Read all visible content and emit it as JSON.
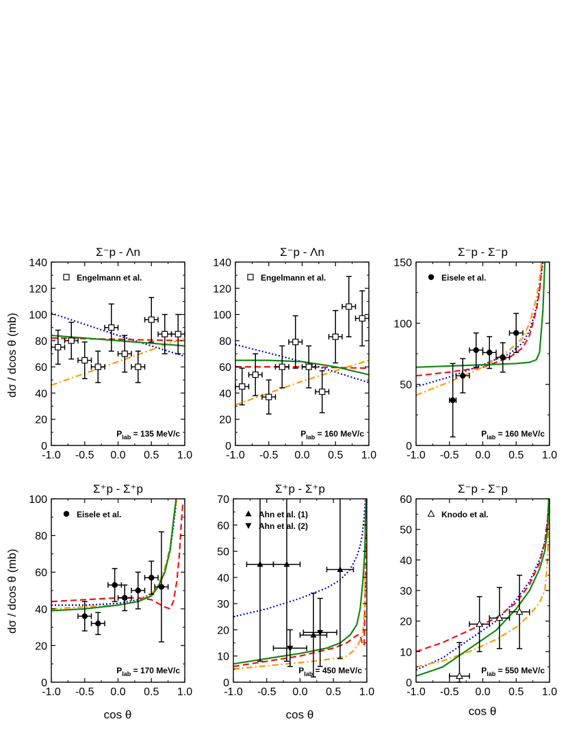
{
  "figure": {
    "ylabel": "dσ / dcos θ (mb)",
    "xlabel": "cos θ"
  },
  "chart_data": [
    {
      "type": "line",
      "title": "Σ⁻p - Λn",
      "momentum_label": "P",
      "momentum_sub": "lab",
      "momentum_value": "= 135 MeV/c",
      "xlim": [
        -1.0,
        1.0
      ],
      "ylim": [
        0,
        140
      ],
      "xticks": [
        "-1.0",
        "-0.5",
        "0.0",
        "0.5",
        "1.0"
      ],
      "yticks": [
        "0",
        "20",
        "40",
        "60",
        "80",
        "100",
        "120",
        "140"
      ],
      "legend": [
        {
          "label": "Engelmann et al.",
          "marker": "open-square"
        }
      ],
      "data_points": [
        {
          "marker": "open-square",
          "x": -0.9,
          "y": 75,
          "xerr": 0.1,
          "yerr": 13
        },
        {
          "marker": "open-square",
          "x": -0.7,
          "y": 80,
          "xerr": 0.1,
          "yerr": 14
        },
        {
          "marker": "open-square",
          "x": -0.5,
          "y": 65,
          "xerr": 0.1,
          "yerr": 14
        },
        {
          "marker": "open-square",
          "x": -0.3,
          "y": 60,
          "xerr": 0.1,
          "yerr": 12
        },
        {
          "marker": "open-square",
          "x": -0.1,
          "y": 90,
          "xerr": 0.1,
          "yerr": 18
        },
        {
          "marker": "open-square",
          "x": 0.1,
          "y": 70,
          "xerr": 0.1,
          "yerr": 14
        },
        {
          "marker": "open-square",
          "x": 0.3,
          "y": 60,
          "xerr": 0.1,
          "yerr": 12
        },
        {
          "marker": "open-square",
          "x": 0.5,
          "y": 96,
          "xerr": 0.1,
          "yerr": 17
        },
        {
          "marker": "open-square",
          "x": 0.7,
          "y": 85,
          "xerr": 0.1,
          "yerr": 15
        },
        {
          "marker": "open-square",
          "x": 0.9,
          "y": 85,
          "xerr": 0.1,
          "yerr": 15
        }
      ],
      "curves": [
        {
          "style": "dotted",
          "color": "#0000cc",
          "x": [
            -1,
            0,
            1
          ],
          "y": [
            101,
            84,
            68
          ]
        },
        {
          "style": "dashed",
          "color": "#ee1111",
          "x": [
            -1,
            0,
            1
          ],
          "y": [
            82,
            81,
            80
          ]
        },
        {
          "style": "dashdot",
          "color": "#ff9900",
          "x": [
            -1,
            0,
            1
          ],
          "y": [
            46,
            64,
            82
          ]
        },
        {
          "style": "solid",
          "color": "#118811",
          "x": [
            -1,
            0,
            1
          ],
          "y": [
            84,
            80,
            76
          ]
        }
      ]
    },
    {
      "type": "line",
      "title": "Σ⁻p - Λn",
      "momentum_label": "P",
      "momentum_sub": "lab",
      "momentum_value": "= 160 MeV/c",
      "xlim": [
        -1.0,
        1.0
      ],
      "ylim": [
        0,
        140
      ],
      "xticks": [
        "-1.0",
        "-0.5",
        "0.0",
        "0.5",
        "1.0"
      ],
      "yticks": [
        "0",
        "20",
        "40",
        "60",
        "80",
        "100",
        "120",
        "140"
      ],
      "legend": [
        {
          "label": "Engelmann et al.",
          "marker": "open-square"
        }
      ],
      "data_points": [
        {
          "marker": "open-square",
          "x": -0.9,
          "y": 45,
          "xerr": 0.1,
          "yerr": 14
        },
        {
          "marker": "open-square",
          "x": -0.7,
          "y": 54,
          "xerr": 0.1,
          "yerr": 16
        },
        {
          "marker": "open-square",
          "x": -0.5,
          "y": 37,
          "xerr": 0.1,
          "yerr": 13
        },
        {
          "marker": "open-square",
          "x": -0.3,
          "y": 60,
          "xerr": 0.1,
          "yerr": 16
        },
        {
          "marker": "open-square",
          "x": -0.1,
          "y": 79,
          "xerr": 0.1,
          "yerr": 20
        },
        {
          "marker": "open-square",
          "x": 0.1,
          "y": 60,
          "xerr": 0.1,
          "yerr": 16
        },
        {
          "marker": "open-square",
          "x": 0.3,
          "y": 41,
          "xerr": 0.1,
          "yerr": 16
        },
        {
          "marker": "open-square",
          "x": 0.5,
          "y": 83,
          "xerr": 0.1,
          "yerr": 20
        },
        {
          "marker": "open-square",
          "x": 0.7,
          "y": 106,
          "xerr": 0.1,
          "yerr": 23
        },
        {
          "marker": "open-square",
          "x": 0.9,
          "y": 97,
          "xerr": 0.1,
          "yerr": 21
        }
      ],
      "curves": [
        {
          "style": "dotted",
          "color": "#0000cc",
          "x": [
            -1,
            0,
            1
          ],
          "y": [
            77,
            64,
            48
          ]
        },
        {
          "style": "dashed",
          "color": "#ee1111",
          "x": [
            -1,
            0,
            1
          ],
          "y": [
            60,
            60,
            59
          ]
        },
        {
          "style": "dashdot",
          "color": "#ff9900",
          "x": [
            -1,
            0,
            1
          ],
          "y": [
            31,
            49,
            65
          ]
        },
        {
          "style": "solid",
          "color": "#118811",
          "x": [
            -1,
            -0.5,
            0,
            0.5,
            1
          ],
          "y": [
            65,
            65,
            64,
            60,
            54
          ]
        }
      ]
    },
    {
      "type": "line",
      "title": "Σ⁻p - Σ⁻p",
      "momentum_label": "P",
      "momentum_sub": "lab",
      "momentum_value": "= 160 MeV/c",
      "xlim": [
        -1.0,
        1.0
      ],
      "ylim": [
        0,
        150
      ],
      "xticks": [
        "-1.0",
        "-0.5",
        "0.0",
        "0.5",
        "1.0"
      ],
      "yticks": [
        "0",
        "50",
        "100",
        "150"
      ],
      "legend": [
        {
          "label": "Eisele et al.",
          "marker": "filled-circle"
        }
      ],
      "data_points": [
        {
          "marker": "filled-circle",
          "x": -0.45,
          "y": 37,
          "xerr": 0.05,
          "yerr": 30
        },
        {
          "marker": "filled-circle",
          "x": -0.3,
          "y": 57,
          "xerr": 0.1,
          "yerr": 14
        },
        {
          "marker": "filled-circle",
          "x": -0.1,
          "y": 78,
          "xerr": 0.1,
          "yerr": 14
        },
        {
          "marker": "filled-circle",
          "x": 0.1,
          "y": 76,
          "xerr": 0.1,
          "yerr": 13
        },
        {
          "marker": "filled-circle",
          "x": 0.3,
          "y": 72,
          "xerr": 0.1,
          "yerr": 12
        },
        {
          "marker": "filled-circle",
          "x": 0.5,
          "y": 92,
          "xerr": 0.1,
          "yerr": 16
        }
      ],
      "curves": [
        {
          "style": "dotted",
          "color": "#0000cc",
          "x": [
            -1,
            -0.5,
            0,
            0.4,
            0.6,
            0.7,
            0.8,
            0.85,
            0.9
          ],
          "y": [
            48,
            56,
            66,
            75,
            84,
            94,
            112,
            128,
            150
          ]
        },
        {
          "style": "dashed",
          "color": "#ee1111",
          "x": [
            -1,
            -0.5,
            0,
            0.4,
            0.6,
            0.7,
            0.8,
            0.85,
            0.89
          ],
          "y": [
            57,
            60,
            64,
            72,
            80,
            90,
            110,
            126,
            150
          ]
        },
        {
          "style": "dashdot",
          "color": "#ff9900",
          "x": [
            -1,
            -0.5,
            0,
            0.4,
            0.6,
            0.7,
            0.8,
            0.85,
            0.88
          ],
          "y": [
            41,
            52,
            64,
            78,
            88,
            100,
            120,
            136,
            150
          ]
        },
        {
          "style": "solid",
          "color": "#118811",
          "x": [
            -1,
            -0.5,
            0,
            0.5,
            0.7,
            0.8,
            0.85,
            0.9,
            0.93
          ],
          "y": [
            64,
            65,
            66,
            67,
            68,
            70,
            76,
            110,
            150
          ]
        }
      ]
    },
    {
      "type": "line",
      "title": "Σ⁺p - Σ⁺p",
      "momentum_label": "P",
      "momentum_sub": "lab",
      "momentum_value": "= 170 MeV/c",
      "xlim": [
        -1.0,
        1.0
      ],
      "ylim": [
        0,
        100
      ],
      "xticks": [
        "-1.0",
        "-0.5",
        "0.0",
        "0.5",
        "1.0"
      ],
      "yticks": [
        "0",
        "20",
        "40",
        "60",
        "80",
        "100"
      ],
      "legend": [
        {
          "label": "Eisele et al.",
          "marker": "filled-circle"
        }
      ],
      "data_points": [
        {
          "marker": "filled-circle",
          "x": -0.5,
          "y": 36,
          "xerr": 0.1,
          "yerr": 8
        },
        {
          "marker": "filled-circle",
          "x": -0.3,
          "y": 32,
          "xerr": 0.1,
          "yerr": 6
        },
        {
          "marker": "filled-circle",
          "x": -0.05,
          "y": 53,
          "xerr": 0.1,
          "yerr": 9
        },
        {
          "marker": "filled-circle",
          "x": 0.1,
          "y": 46,
          "xerr": 0.1,
          "yerr": 7
        },
        {
          "marker": "filled-circle",
          "x": 0.3,
          "y": 50,
          "xerr": 0.1,
          "yerr": 10
        },
        {
          "marker": "filled-circle",
          "x": 0.5,
          "y": 57,
          "xerr": 0.1,
          "yerr": 9
        },
        {
          "marker": "filled-circle",
          "x": 0.65,
          "y": 52,
          "xerr": 0.1,
          "yerr": 30
        }
      ],
      "curves": [
        {
          "style": "dotted",
          "color": "#0000cc",
          "x": [
            -1,
            -0.5,
            0,
            0.3,
            0.5,
            0.6,
            0.7,
            0.78,
            0.84,
            0.88
          ],
          "y": [
            42,
            42,
            43,
            45,
            48,
            52,
            60,
            72,
            88,
            100
          ]
        },
        {
          "style": "dashed",
          "color": "#ee1111",
          "x": [
            -1,
            -0.5,
            0,
            0.3,
            0.5,
            0.6,
            0.7,
            0.78,
            0.83,
            0.88,
            0.92,
            0.95,
            0.97
          ],
          "y": [
            44,
            45,
            46,
            46,
            45,
            43,
            41,
            40,
            44,
            55,
            70,
            88,
            97
          ]
        },
        {
          "style": "dashdot",
          "color": "#ff9900",
          "x": [
            -1,
            -0.5,
            0,
            0.3,
            0.5,
            0.6,
            0.7,
            0.78,
            0.84,
            0.88
          ],
          "y": [
            40,
            41,
            42,
            44,
            48,
            53,
            62,
            74,
            90,
            100
          ]
        },
        {
          "style": "solid",
          "color": "#118811",
          "x": [
            -1,
            -0.5,
            0,
            0.3,
            0.5,
            0.6,
            0.7,
            0.78,
            0.83,
            0.87
          ],
          "y": [
            39,
            40,
            42,
            44,
            47,
            52,
            60,
            72,
            88,
            100
          ]
        }
      ]
    },
    {
      "type": "line",
      "title": "Σ⁺p - Σ⁺p",
      "momentum_label": "P",
      "momentum_sub": "lab",
      "momentum_value": "= 450 MeV/c",
      "xlim": [
        -1.0,
        1.0
      ],
      "ylim": [
        0,
        70
      ],
      "xticks": [
        "-1.0",
        "-0.5",
        "0.0",
        "0.5",
        "1.0"
      ],
      "yticks": [
        "0",
        "10",
        "20",
        "30",
        "40",
        "50",
        "60",
        "70"
      ],
      "legend": [
        {
          "label": "Ahn et al. (1)",
          "marker": "filled-triangle-up"
        },
        {
          "label": "Ahn et al. (2)",
          "marker": "filled-triangle-down"
        }
      ],
      "data_points": [
        {
          "marker": "filled-triangle-up",
          "x": -0.6,
          "y": 45,
          "xerr": 0.2,
          "yerr": 37
        },
        {
          "marker": "filled-triangle-up",
          "x": -0.2,
          "y": 45,
          "xerr": 0.2,
          "yerr": 37
        },
        {
          "marker": "filled-triangle-up",
          "x": 0.2,
          "y": 18,
          "xerr": 0.2,
          "yerr": 16
        },
        {
          "marker": "filled-triangle-up",
          "x": 0.6,
          "y": 43,
          "xerr": 0.2,
          "yerr": 34
        },
        {
          "marker": "filled-triangle-down",
          "x": -0.15,
          "y": 13,
          "xerr": 0.25,
          "yerr": 7
        },
        {
          "marker": "filled-triangle-down",
          "x": 0.3,
          "y": 19,
          "xerr": 0.25,
          "yerr": 13
        }
      ],
      "curves": [
        {
          "style": "dotted",
          "color": "#0000cc",
          "x": [
            -1,
            -0.5,
            0,
            0.4,
            0.6,
            0.75,
            0.85,
            0.9,
            0.93,
            0.96,
            0.98
          ],
          "y": [
            25,
            28,
            32,
            36,
            39,
            43,
            48,
            52,
            56,
            63,
            70
          ]
        },
        {
          "style": "dashed",
          "color": "#ee1111",
          "x": [
            -1,
            -0.5,
            0,
            0.5,
            0.7,
            0.8,
            0.86,
            0.9,
            0.93,
            0.96,
            0.98,
            0.99
          ],
          "y": [
            6,
            8,
            10,
            13,
            15,
            17,
            18,
            18,
            15,
            14,
            40,
            70
          ]
        },
        {
          "style": "dashdot",
          "color": "#ff9900",
          "x": [
            -1,
            -0.6,
            -0.2,
            0.2,
            0.5,
            0.7,
            0.8,
            0.86,
            0.9,
            0.94,
            0.97,
            0.99
          ],
          "y": [
            5,
            6,
            7,
            8,
            9,
            10,
            12,
            14,
            16,
            18,
            30,
            70
          ]
        },
        {
          "style": "solid",
          "color": "#118811",
          "x": [
            -1,
            -0.5,
            0,
            0.4,
            0.6,
            0.75,
            0.85,
            0.9,
            0.94,
            0.97,
            0.98,
            0.99
          ],
          "y": [
            7,
            9,
            11,
            13,
            15,
            18,
            22,
            28,
            38,
            50,
            62,
            70
          ]
        }
      ]
    },
    {
      "type": "line",
      "title": "Σ⁻p - Σ⁻p",
      "momentum_label": "P",
      "momentum_sub": "lab",
      "momentum_value": "= 550 MeV/c",
      "xlim": [
        -1.0,
        1.0
      ],
      "ylim": [
        0,
        60
      ],
      "xticks": [
        "-1.0",
        "-0.5",
        "0.0",
        "0.5",
        "1.0"
      ],
      "yticks": [
        "0",
        "10",
        "20",
        "30",
        "40",
        "50",
        "60"
      ],
      "legend": [
        {
          "label": "Knodo et al.",
          "marker": "open-triangle-up"
        }
      ],
      "data_points": [
        {
          "marker": "open-triangle-up",
          "x": -0.35,
          "y": 2,
          "xerr": 0.15,
          "yerr": 11
        },
        {
          "marker": "open-triangle-up",
          "x": -0.05,
          "y": 19,
          "xerr": 0.15,
          "yerr": 9
        },
        {
          "marker": "open-triangle-up",
          "x": 0.25,
          "y": 21,
          "xerr": 0.15,
          "yerr": 10
        },
        {
          "marker": "open-triangle-up",
          "x": 0.55,
          "y": 23,
          "xerr": 0.15,
          "yerr": 12
        }
      ],
      "curves": [
        {
          "style": "dotted",
          "color": "#0000cc",
          "x": [
            -1,
            -0.6,
            -0.2,
            0.2,
            0.5,
            0.7,
            0.85,
            0.93,
            0.97,
            0.99
          ],
          "y": [
            4,
            8,
            14,
            20,
            27,
            33,
            40,
            46,
            53,
            60
          ]
        },
        {
          "style": "dashed",
          "color": "#ee1111",
          "x": [
            -1,
            -0.6,
            -0.2,
            0.2,
            0.5,
            0.7,
            0.85,
            0.93,
            0.97,
            0.99
          ],
          "y": [
            10,
            13,
            17,
            21,
            26,
            32,
            39,
            46,
            53,
            60
          ]
        },
        {
          "style": "dashdot",
          "color": "#ff9900",
          "x": [
            -1,
            -0.6,
            -0.2,
            0.2,
            0.5,
            0.7,
            0.85,
            0.93,
            0.97,
            0.985,
            0.995
          ],
          "y": [
            5,
            7,
            10,
            14,
            18,
            22,
            26,
            30,
            40,
            50,
            60
          ]
        },
        {
          "style": "solid",
          "color": "#118811",
          "x": [
            -1,
            -0.6,
            -0.2,
            0.2,
            0.5,
            0.7,
            0.85,
            0.93,
            0.97,
            0.99
          ],
          "y": [
            2,
            5,
            11,
            17,
            24,
            30,
            37,
            43,
            50,
            60
          ]
        }
      ]
    }
  ]
}
